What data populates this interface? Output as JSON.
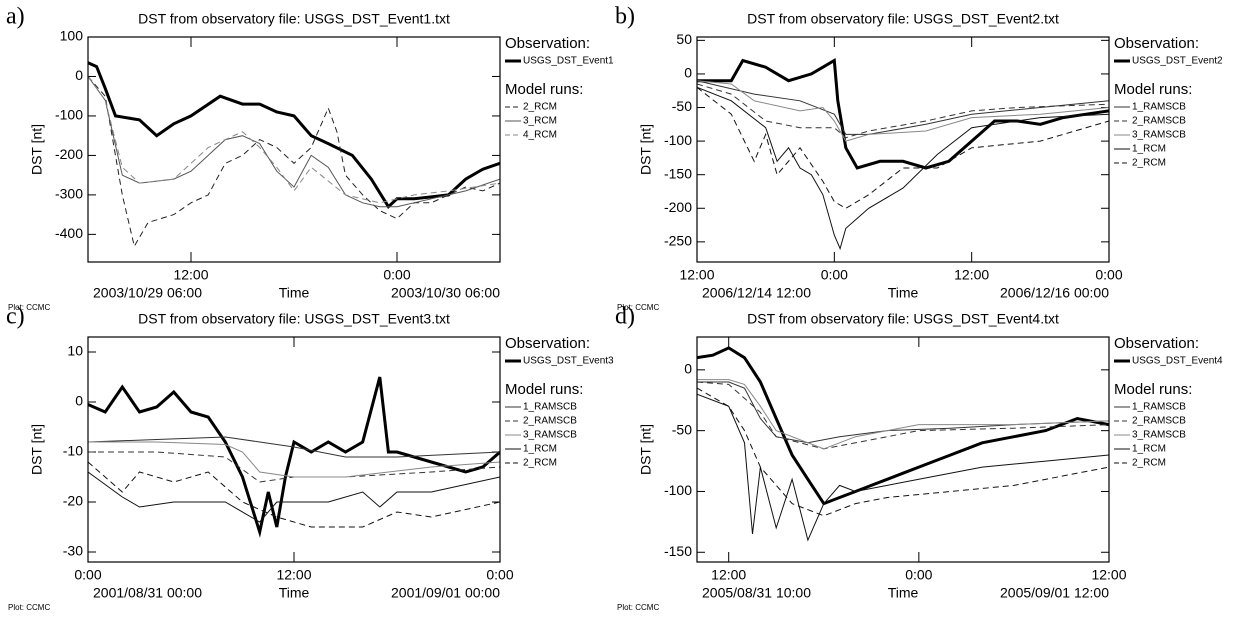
{
  "chart_data": [
    {
      "type": "line",
      "panel": "a)",
      "title": "DST from observatory file: USGS_DST_Event1.txt",
      "x_label": "Time",
      "y_label": "DST [nt]",
      "start_label": "2003/10/29 06:00",
      "end_label": "2003/10/30 06:00",
      "footer": "Plot: CCMC",
      "legend_observation_heading": "Observation:",
      "legend_model_heading": "Model runs:",
      "xlim": [
        0,
        24
      ],
      "xticks": [
        {
          "value": 6,
          "label": "12:00"
        },
        {
          "value": 18,
          "label": "0:00"
        }
      ],
      "ylim": [
        -470,
        100
      ],
      "yticks": [
        100,
        0,
        -100,
        -200,
        -300,
        -400
      ],
      "series": [
        {
          "name": "USGS_DST_Event1",
          "role": "observation",
          "color": "#000000",
          "width": 3,
          "dashed": false,
          "x": [
            0,
            0.5,
            1,
            1.6,
            3,
            4,
            5,
            6,
            7.7,
            9,
            10,
            11,
            12,
            13,
            14,
            15.4,
            16.5,
            17.5,
            18,
            19,
            20,
            21,
            22,
            23,
            24
          ],
          "values": [
            35,
            25,
            -30,
            -100,
            -110,
            -150,
            -120,
            -100,
            -50,
            -70,
            -70,
            -90,
            -100,
            -150,
            -170,
            -200,
            -260,
            -330,
            -310,
            -310,
            -305,
            -300,
            -260,
            -235,
            -220
          ]
        },
        {
          "name": "2_RCM",
          "role": "model",
          "color": "#222222",
          "width": 1,
          "dashed": true,
          "x": [
            0,
            1,
            2,
            2.7,
            3.5,
            5,
            6,
            7,
            8,
            9,
            10,
            11,
            12,
            13,
            14,
            14.5,
            15,
            16,
            17,
            18,
            19,
            20,
            21,
            22,
            23,
            24
          ],
          "values": [
            0,
            -50,
            -300,
            -430,
            -370,
            -350,
            -320,
            -300,
            -220,
            -200,
            -160,
            -180,
            -220,
            -180,
            -80,
            -140,
            -250,
            -300,
            -340,
            -360,
            -320,
            -320,
            -300,
            -280,
            -290,
            -270
          ]
        },
        {
          "name": "3_RCM",
          "role": "model",
          "color": "#555555",
          "width": 1,
          "dashed": false,
          "x": [
            0,
            1,
            2,
            3,
            5,
            6,
            7,
            8,
            9,
            10,
            11,
            12,
            13,
            14,
            15,
            16,
            17,
            18,
            20,
            22,
            24
          ],
          "values": [
            0,
            -60,
            -250,
            -270,
            -260,
            -240,
            -200,
            -160,
            -150,
            -170,
            -240,
            -280,
            -200,
            -230,
            -300,
            -320,
            -330,
            -330,
            -310,
            -290,
            -260
          ]
        },
        {
          "name": "4_RCM",
          "role": "model",
          "color": "#888888",
          "width": 1,
          "dashed": true,
          "x": [
            0,
            1,
            2,
            3,
            5,
            7,
            8,
            9,
            10,
            11,
            12,
            13,
            15,
            17,
            19,
            21,
            24
          ],
          "values": [
            0,
            -60,
            -230,
            -270,
            -260,
            -180,
            -160,
            -140,
            -180,
            -230,
            -290,
            -230,
            -300,
            -320,
            -300,
            -290,
            -270
          ]
        }
      ]
    },
    {
      "type": "line",
      "panel": "b)",
      "title": "DST from observatory file: USGS_DST_Event2.txt",
      "x_label": "Time",
      "y_label": "DST [nt]",
      "start_label": "2006/12/14 12:00",
      "end_label": "2006/12/16 00:00",
      "footer": "Plot: CCMC",
      "legend_observation_heading": "Observation:",
      "legend_model_heading": "Model runs:",
      "xlim": [
        0,
        36
      ],
      "xticks": [
        {
          "value": 0,
          "label": "12:00"
        },
        {
          "value": 12,
          "label": "0:00"
        },
        {
          "value": 24,
          "label": "12:00"
        },
        {
          "value": 36,
          "label": "0:00"
        }
      ],
      "ylim": [
        -280,
        55
      ],
      "yticks": [
        50,
        0,
        -50,
        -100,
        -150,
        -200,
        -250
      ],
      "series": [
        {
          "name": "USGS_DST_Event2",
          "role": "observation",
          "color": "#000000",
          "width": 3,
          "dashed": false,
          "x": [
            0,
            3,
            4,
            6,
            8,
            10,
            11,
            12,
            12.3,
            13,
            14,
            16,
            18,
            20,
            22,
            24,
            26,
            28,
            30,
            32,
            34,
            36
          ],
          "values": [
            -10,
            -10,
            20,
            10,
            -10,
            0,
            10,
            20,
            -40,
            -110,
            -140,
            -130,
            -130,
            -140,
            -130,
            -100,
            -70,
            -70,
            -75,
            -65,
            -60,
            -55
          ]
        },
        {
          "name": "1_RAMSCB",
          "role": "model",
          "color": "#333333",
          "width": 1,
          "dashed": false,
          "x": [
            0,
            5,
            9,
            12,
            13,
            15,
            20,
            24,
            30,
            36
          ],
          "values": [
            -10,
            -30,
            -40,
            -60,
            -90,
            -90,
            -75,
            -60,
            -50,
            -40
          ]
        },
        {
          "name": "2_RAMSCB",
          "role": "model",
          "color": "#333333",
          "width": 1,
          "dashed": true,
          "x": [
            0,
            3,
            6,
            9,
            12,
            13,
            15,
            20,
            24,
            28,
            36
          ],
          "values": [
            -15,
            -30,
            -70,
            -80,
            -80,
            -95,
            -85,
            -70,
            -55,
            -50,
            -45
          ]
        },
        {
          "name": "3_RAMSCB",
          "role": "model",
          "color": "#888888",
          "width": 1,
          "dashed": false,
          "x": [
            0,
            3,
            5,
            9,
            11,
            12,
            13,
            15,
            20,
            24,
            30,
            36
          ],
          "values": [
            -10,
            -15,
            -40,
            -55,
            -50,
            -70,
            -100,
            -90,
            -85,
            -65,
            -60,
            -50
          ]
        },
        {
          "name": "1_RCM",
          "role": "model",
          "color": "#111111",
          "width": 1,
          "dashed": false,
          "x": [
            0,
            3,
            6,
            7,
            8,
            9,
            10,
            11,
            12,
            12.5,
            13,
            15,
            18,
            21,
            24,
            30,
            36
          ],
          "values": [
            -20,
            -40,
            -80,
            -130,
            -110,
            -140,
            -150,
            -180,
            -240,
            -260,
            -230,
            -200,
            -170,
            -120,
            -80,
            -65,
            -60
          ]
        },
        {
          "name": "2_RCM",
          "role": "model",
          "color": "#111111",
          "width": 1,
          "dashed": true,
          "x": [
            0,
            3,
            5,
            6,
            7,
            9,
            11,
            12,
            13,
            15,
            18,
            21,
            24,
            30,
            36
          ],
          "values": [
            -20,
            -60,
            -130,
            -90,
            -150,
            -110,
            -160,
            -190,
            -200,
            -180,
            -140,
            -140,
            -110,
            -100,
            -70
          ]
        }
      ]
    },
    {
      "type": "line",
      "panel": "c)",
      "title": "DST from observatory file: USGS_DST_Event3.txt",
      "x_label": "Time",
      "y_label": "DST [nt]",
      "start_label": "2001/08/31 00:00",
      "end_label": "2001/09/01 00:00",
      "footer": "Plot: CCMC",
      "legend_observation_heading": "Observation:",
      "legend_model_heading": "Model runs:",
      "xlim": [
        0,
        24
      ],
      "xticks": [
        {
          "value": 0,
          "label": "0:00"
        },
        {
          "value": 12,
          "label": "12:00"
        },
        {
          "value": 24,
          "label": "0:00"
        }
      ],
      "ylim": [
        -32,
        13
      ],
      "yticks": [
        10,
        0,
        -10,
        -20,
        -30
      ],
      "series": [
        {
          "name": "USGS_DST_Event3",
          "role": "observation",
          "color": "#000000",
          "width": 3,
          "dashed": false,
          "x": [
            0,
            1,
            2,
            3,
            4,
            5,
            6,
            7,
            8,
            9,
            10,
            10.5,
            11,
            11.5,
            12,
            13,
            14,
            15,
            16,
            17,
            17.5,
            18,
            20,
            22,
            23,
            24
          ],
          "values": [
            -0.5,
            -2,
            3,
            -2,
            -1,
            2,
            -2,
            -3,
            -8,
            -15,
            -26,
            -18,
            -25,
            -15,
            -8,
            -10,
            -8,
            -10,
            -8,
            5,
            -10,
            -10,
            -12,
            -14,
            -13,
            -10
          ]
        },
        {
          "name": "1_RAMSCB",
          "role": "model",
          "color": "#333333",
          "width": 1,
          "dashed": false,
          "x": [
            0,
            4,
            8,
            10,
            12,
            15,
            18,
            21,
            24
          ],
          "values": [
            -8,
            -7.5,
            -7,
            -8,
            -9,
            -11,
            -11,
            -10.5,
            -10
          ]
        },
        {
          "name": "2_RAMSCB",
          "role": "model",
          "color": "#333333",
          "width": 1,
          "dashed": true,
          "x": [
            0,
            4,
            8,
            10,
            12,
            15,
            20,
            24
          ],
          "values": [
            -10,
            -10,
            -11,
            -16,
            -15,
            -15,
            -14,
            -13
          ]
        },
        {
          "name": "3_RAMSCB",
          "role": "model",
          "color": "#888888",
          "width": 1,
          "dashed": false,
          "x": [
            0,
            4,
            8,
            9,
            10,
            12,
            15,
            20,
            24
          ],
          "values": [
            -8,
            -8,
            -8.5,
            -10,
            -14,
            -15,
            -15,
            -13,
            -12
          ]
        },
        {
          "name": "1_RCM",
          "role": "model",
          "color": "#111111",
          "width": 1,
          "dashed": false,
          "x": [
            0,
            2,
            3,
            5,
            8,
            10,
            11,
            12,
            14,
            16,
            17,
            18,
            20,
            24
          ],
          "values": [
            -14,
            -19,
            -21,
            -20,
            -20,
            -24,
            -20,
            -20,
            -20,
            -18,
            -21,
            -18,
            -18,
            -15
          ]
        },
        {
          "name": "2_RCM",
          "role": "model",
          "color": "#111111",
          "width": 1,
          "dashed": true,
          "x": [
            0,
            2,
            3,
            5,
            7,
            9,
            11,
            13,
            16,
            18,
            20,
            24
          ],
          "values": [
            -12,
            -18,
            -14,
            -16,
            -14,
            -20,
            -23,
            -25,
            -25,
            -22,
            -23,
            -20
          ]
        }
      ]
    },
    {
      "type": "line",
      "panel": "d)",
      "title": "DST from observatory file: USGS_DST_Event4.txt",
      "x_label": "Time",
      "y_label": "DST [nt]",
      "start_label": "2005/08/31 10:00",
      "end_label": "2005/09/01 12:00",
      "footer": "Plot: CCMC",
      "legend_observation_heading": "Observation:",
      "legend_model_heading": "Model runs:",
      "xlim": [
        0,
        26
      ],
      "xticks": [
        {
          "value": 2,
          "label": "12:00"
        },
        {
          "value": 14,
          "label": "0:00"
        },
        {
          "value": 26,
          "label": "12:00"
        }
      ],
      "ylim": [
        -158,
        27
      ],
      "yticks": [
        0,
        -50,
        -100,
        -150
      ],
      "series": [
        {
          "name": "USGS_DST_Event4",
          "role": "observation",
          "color": "#000000",
          "width": 3,
          "dashed": false,
          "x": [
            0,
            1,
            2,
            3,
            4,
            5,
            6,
            7,
            8,
            9,
            10,
            11,
            12,
            13,
            14,
            16,
            18,
            20,
            22,
            24,
            26
          ],
          "values": [
            10,
            12,
            18,
            10,
            -10,
            -40,
            -70,
            -90,
            -110,
            -105,
            -100,
            -95,
            -90,
            -85,
            -80,
            -70,
            -60,
            -55,
            -50,
            -40,
            -45
          ]
        },
        {
          "name": "1_RAMSCB",
          "role": "model",
          "color": "#333333",
          "width": 1,
          "dashed": false,
          "x": [
            0,
            2,
            3,
            4,
            5,
            7,
            9,
            12,
            16,
            20,
            26
          ],
          "values": [
            -10,
            -10,
            -15,
            -40,
            -55,
            -60,
            -55,
            -50,
            -48,
            -45,
            -42
          ]
        },
        {
          "name": "2_RAMSCB",
          "role": "model",
          "color": "#333333",
          "width": 1,
          "dashed": true,
          "x": [
            0,
            2,
            4,
            5,
            8,
            10,
            14,
            20,
            26
          ],
          "values": [
            -10,
            -12,
            -35,
            -55,
            -65,
            -60,
            -50,
            -48,
            -45
          ]
        },
        {
          "name": "3_RAMSCB",
          "role": "model",
          "color": "#888888",
          "width": 1,
          "dashed": false,
          "x": [
            0,
            2,
            3,
            4,
            5,
            8,
            10,
            14,
            20,
            26
          ],
          "values": [
            -8,
            -8,
            -12,
            -30,
            -50,
            -65,
            -55,
            -45,
            -45,
            -42
          ]
        },
        {
          "name": "1_RCM",
          "role": "model",
          "color": "#111111",
          "width": 1,
          "dashed": false,
          "x": [
            0,
            2,
            3,
            3.5,
            4,
            5,
            6,
            7,
            8,
            9,
            10,
            12,
            14,
            18,
            22,
            26
          ],
          "values": [
            -20,
            -30,
            -60,
            -135,
            -80,
            -130,
            -90,
            -140,
            -110,
            -95,
            -100,
            -95,
            -90,
            -80,
            -75,
            -70
          ]
        },
        {
          "name": "2_RCM",
          "role": "model",
          "color": "#111111",
          "width": 1,
          "dashed": true,
          "x": [
            0,
            2,
            3,
            4,
            6,
            8,
            10,
            12,
            16,
            20,
            26
          ],
          "values": [
            -15,
            -30,
            -50,
            -80,
            -110,
            -120,
            -110,
            -105,
            -100,
            -95,
            -80
          ]
        }
      ]
    }
  ]
}
